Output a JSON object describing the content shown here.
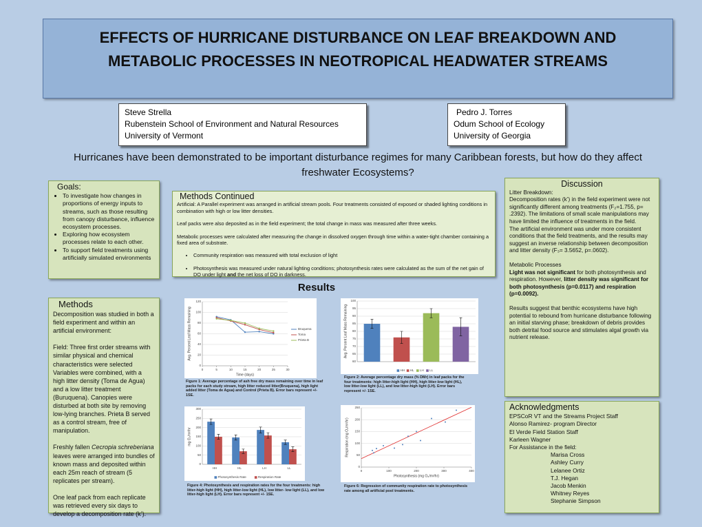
{
  "title": {
    "lines": [
      "EFFECTS OF HURRICANE DISTURBANCE ON LEAF BREAKDOWN AND",
      "METABOLIC PROCESSES IN NEOTROPICAL HEADWATER STREAMS"
    ]
  },
  "authors": [
    {
      "name": "Steve Strella",
      "lines": [
        "Rubenstein School of Environment and Natural Resources",
        "University of Vermont"
      ]
    },
    {
      "name": "Pedro J. Torres",
      "lines": [
        "Odum School of Ecology",
        "University of Georgia"
      ]
    }
  ],
  "intro": "Hurricanes have been demonstrated to be important disturbance regimes for many Caribbean forests, but how do they affect freshwater Ecosystems?",
  "goals": {
    "heading": "Goals:",
    "items": [
      "To investigate how changes in proportions of energy inputs to streams, such as those resulting from canopy disturbance, influence ecosystem processes.",
      "Exploring how ecosystem processes relate to each other.",
      "To support field treatments using artificially simulated environments"
    ]
  },
  "methods": {
    "heading": "Methods",
    "paragraphs": [
      "Decomposition was studied in both a field experiment and within an artificial environment:",
      "Field: Three first order streams with similar physical and chemical characteristics were selected Variables were combined, with a high litter density (Toma de Agua) and a low litter treatment (Buruquena). Canopies were disturbed at both site by removing low-lying branches. Prieta B served as a control stream, free of manipulation.",
      [
        {
          "text": "Freshly fallen "
        },
        {
          "text": "Cecropia schreberiana",
          "style": "italic"
        },
        {
          "text": " leaves were arranged into bundles of known mass and deposited within each 25m reach of stream (5 replicates per stream)."
        }
      ],
      "One leaf pack from each replicate was retrieved every six days to develop a decomposition rate (k’)."
    ]
  },
  "methods_continued": {
    "heading": "Methods Continued",
    "paragraphs": [
      "Artificial: A Parallel experiment was arranged in artificial stream pools. Four treatments consisted of exposed or shaded lighting conditions in combination with high or low litter densities.",
      "Leaf packs were also deposited as in the field experiment; the total change in mass was measured after three weeks.",
      "Metabolic processes were calculated after measuring the change in dissolved oxygen through time within a water-tight chamber containing a fixed area of substrate."
    ],
    "bullets": [
      "Community respiration was measured with total exclusion of light",
      [
        {
          "text": "Photosynthesis was measured under natural lighting conditions; photosynthesis rates were calculated as the sum of the net gain of DO under light "
        },
        {
          "text": "and",
          "style": "bold"
        },
        {
          "text": " the net loss of DO in darkness."
        }
      ]
    ]
  },
  "results_heading": "Results",
  "discussion": {
    "heading": "Discussion",
    "blocks": [
      "Litter Breakdown:",
      "Decomposition rates (k’) in the field experiment were not significantly different among treatments (F₂=1.755, p= .2392). The limitations of small scale manipulations may have limited the influence of treatments in the field.",
      "The artificial environment was under more consistent conditions that the field treatments, and the results may suggest an inverse relationship between decomposition and litter density (F₃= 3.5652, p=.0602).",
      "Metabolic Processes",
      [
        {
          "text": "Light was not significant",
          "style": "bold"
        },
        {
          "text": " for both photosynthesis and respiration. However, "
        },
        {
          "text": "litter density was significant for both photosynthesis (p=0.0117) and respiration (p=0.0092).",
          "style": "bold"
        }
      ],
      "Results suggest that benthic ecosystems have high potential to rebound from hurricane disturbance following an initial starving phase; breakdown of debris provides both detrital food source and stimulates algal growth via nutrient release."
    ]
  },
  "acknowledgments": {
    "heading": "Acknowledgments",
    "lines": [
      "EPSCoR VT and the Streams Project Staff",
      "Alonso Ramirez- program Director",
      "El Verde Field Station Staff",
      "Karleen Wagner",
      "For Assistance in the field:"
    ],
    "names": [
      "Marisa Cross",
      "Ashley Curry",
      "Lelanee Ortiz",
      "T.J. Hegan",
      "Jacob Menkin",
      "Whitney Reyes",
      "Stephanie Simpson"
    ]
  },
  "chart_data": [
    {
      "type": "line",
      "x": [
        5,
        10,
        15,
        20,
        25
      ],
      "xlim": [
        0,
        30
      ],
      "xticks": [
        0,
        5,
        10,
        15,
        20,
        25,
        30
      ],
      "ylim": [
        0,
        120
      ],
      "yticks": [
        0,
        20,
        40,
        60,
        80,
        100,
        120
      ],
      "grid": true,
      "xlabel": "Time (days)",
      "ylabel": "Avg. Percent Leaf Mass Remaining",
      "series": [
        {
          "name": "Bruquena",
          "color": "#4f81bd",
          "values": [
            92,
            86,
            63,
            64,
            60
          ]
        },
        {
          "name": "Toma",
          "color": "#c0504d",
          "values": [
            90,
            84,
            77,
            68,
            62
          ]
        },
        {
          "name": "Prieta B",
          "color": "#9bbb59",
          "values": [
            88,
            85,
            80,
            70,
            65
          ]
        }
      ],
      "caption": "Figure 1: Average percentage of ash free dry mass remaining over time in leaf packs for each study stream, high litter reduced litter(Bruquena), high light added litter (Toma de Agua) and Control (Prieta B). Error bars represent +/- 1SE."
    },
    {
      "type": "bar",
      "categories": [
        "HH",
        "HL",
        "LH",
        "LL"
      ],
      "values": [
        85,
        76,
        92,
        83
      ],
      "errors": [
        3,
        4,
        3,
        6
      ],
      "colors": [
        "#4f81bd",
        "#c0504d",
        "#9bbb59",
        "#8064a2"
      ],
      "ylim": [
        60,
        100
      ],
      "yticks": [
        60,
        65,
        70,
        75,
        80,
        85,
        90,
        95,
        100
      ],
      "grid": true,
      "ylabel": "Avg. Percent Leaf Mass Remaining",
      "caption": "Figure 2: Average percentage dry mass (% DMr) in leaf packs for the four treatments: high litter-high light (HH), high litter-low light (HL), low litter-low light (LL), and low litter-high light (LH). Error bars represent +/- 1SE."
    },
    {
      "type": "bar",
      "categories": [
        "HH",
        "HL",
        "LH",
        "LL"
      ],
      "series": [
        {
          "name": "Photosynthesis Rate",
          "color": "#4f81bd",
          "values": [
            232,
            146,
            187,
            120
          ],
          "errors": [
            15,
            14,
            16,
            12
          ]
        },
        {
          "name": "Respiration Rate",
          "color": "#c0504d",
          "values": [
            150,
            71,
            157,
            82
          ],
          "errors": [
            14,
            12,
            15,
            13
          ]
        }
      ],
      "ylim": [
        0,
        300
      ],
      "yticks": [
        0,
        50,
        100,
        150,
        200,
        250,
        300
      ],
      "grid": true,
      "ylabel": "mg O₂/m²/hr",
      "caption": "Figure 4: Photosynthesis and respiration rates for the four treatments: high litter-high light (HH), high litter-low light (HL), low litter- low light (LL), and low litter-high light (LH). Error bars represent +/- 1SE."
    },
    {
      "type": "scatter",
      "x": [
        40,
        45,
        55,
        80,
        120,
        150,
        170,
        200,
        215,
        255,
        305,
        345
      ],
      "values": [
        70,
        60,
        78,
        90,
        80,
        95,
        130,
        150,
        112,
        205,
        190,
        240
      ],
      "color": "#4f81bd",
      "trendline": true,
      "trend_color": "#e03030",
      "xlim": [
        0,
        400
      ],
      "xticks": [
        0,
        100,
        200,
        300,
        400
      ],
      "ylim": [
        0,
        250
      ],
      "yticks": [
        0,
        50,
        100,
        150,
        200,
        250
      ],
      "grid": true,
      "xlabel": "Photosynthesis (mg O₂/m²/hr)",
      "ylabel": "Respiration (mg O₂/m²/hr)",
      "caption": "Figure 6: Regression of community respiration rate to photosynthesis rate among all artificial pool treatments."
    }
  ]
}
